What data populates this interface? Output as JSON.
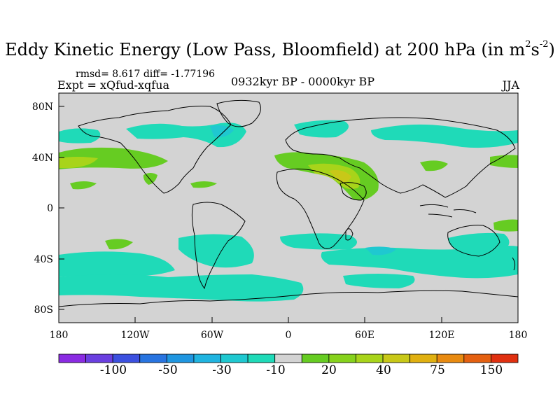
{
  "title": {
    "main": "Eddy Kinetic Energy (Low Pass, Bloomfield) at 200 hPa (in m",
    "sup1": "2",
    "mid": "s",
    "sup2": "-2",
    "end": ")"
  },
  "stats": "rmsd= 8.617 diff= -1.77196",
  "experiment": "Expt = xQfud-xqfua",
  "period": "0932kyr BP - 0000kyr BP",
  "season": "JJA",
  "map": {
    "lat_ticks": [
      "80N",
      "40N",
      "0",
      "40S",
      "80S"
    ],
    "lon_ticks": [
      "180",
      "120W",
      "60W",
      "0",
      "60E",
      "120E",
      "180"
    ],
    "background_color": "#d3d3d3"
  },
  "colorbar": {
    "colors": [
      "#8a2be2",
      "#6a3fe0",
      "#3c50df",
      "#2874e0",
      "#1f96e0",
      "#20b4e0",
      "#1fc8d0",
      "#1fdab8",
      "#d3d3d3",
      "#66cc22",
      "#86d21c",
      "#a8d41a",
      "#c8c818",
      "#e0b010",
      "#e88a10",
      "#e46010",
      "#e03010"
    ],
    "labels": [
      "-100",
      "-50",
      "-30",
      "-10",
      "20",
      "40",
      "75",
      "150"
    ]
  },
  "field_colors": {
    "neg_weak": "#1fdab8",
    "neg_mid": "#1fc8d0",
    "pos_weak": "#66cc22",
    "pos_mid": "#a8d41a",
    "pos_strong": "#c8c818"
  }
}
